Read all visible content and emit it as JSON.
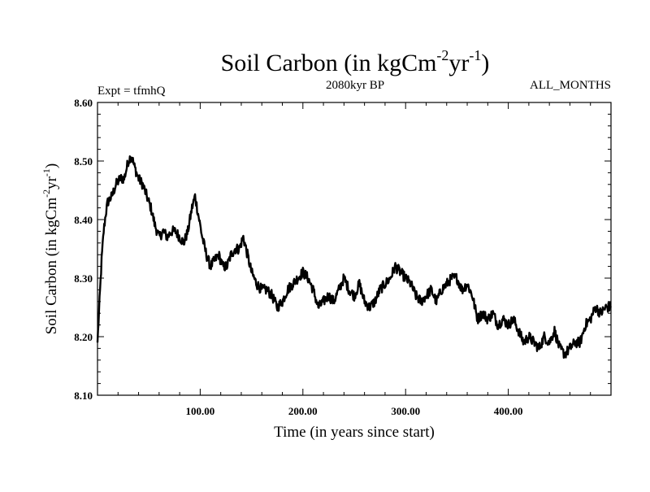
{
  "chart_data": {
    "type": "line",
    "title": {
      "main": "Soil Carbon (in kgCm",
      "sup1": "-2",
      "mid": "yr",
      "sup2": "-1",
      "end": ")"
    },
    "subtitle_left": "Expt = tfmhQ",
    "subtitle_center": "2080kyr BP",
    "subtitle_right": "ALL_MONTHS",
    "xlabel": "Time (in years since start)",
    "ylabel": {
      "main": "Soil Carbon (in kgCm",
      "sup1": "-2",
      "mid": "yr",
      "sup2": "-1",
      "end": ")"
    },
    "xlim": [
      0,
      500
    ],
    "ylim": [
      8.1,
      8.6
    ],
    "xticks": [
      100,
      200,
      300,
      400
    ],
    "xtick_labels": [
      "100.00",
      "200.00",
      "300.00",
      "400.00"
    ],
    "yticks": [
      8.1,
      8.2,
      8.3,
      8.4,
      8.5,
      8.6
    ],
    "ytick_labels": [
      "8.10",
      "8.20",
      "8.30",
      "8.40",
      "8.50",
      "8.60"
    ],
    "series": [
      {
        "name": "Soil Carbon",
        "color": "#000000",
        "x": [
          0,
          2,
          4,
          6,
          8,
          10,
          14,
          18,
          22,
          26,
          30,
          33,
          36,
          40,
          44,
          48,
          52,
          56,
          60,
          64,
          68,
          72,
          76,
          80,
          84,
          88,
          92,
          95,
          98,
          102,
          106,
          110,
          114,
          118,
          122,
          126,
          130,
          134,
          138,
          142,
          146,
          150,
          155,
          160,
          165,
          170,
          175,
          180,
          185,
          190,
          195,
          200,
          205,
          210,
          215,
          220,
          225,
          230,
          235,
          240,
          245,
          250,
          255,
          260,
          265,
          270,
          275,
          280,
          285,
          290,
          295,
          300,
          305,
          310,
          315,
          320,
          325,
          330,
          335,
          340,
          345,
          350,
          355,
          360,
          365,
          370,
          375,
          380,
          385,
          390,
          395,
          400,
          405,
          410,
          415,
          420,
          425,
          430,
          435,
          440,
          445,
          450,
          455,
          460,
          465,
          470,
          475,
          480,
          485,
          490,
          495,
          500
        ],
        "values": [
          8.19,
          8.26,
          8.33,
          8.38,
          8.41,
          8.43,
          8.44,
          8.46,
          8.47,
          8.47,
          8.5,
          8.51,
          8.49,
          8.47,
          8.46,
          8.44,
          8.42,
          8.39,
          8.37,
          8.38,
          8.37,
          8.38,
          8.38,
          8.37,
          8.36,
          8.38,
          8.42,
          8.44,
          8.41,
          8.37,
          8.34,
          8.32,
          8.33,
          8.34,
          8.32,
          8.32,
          8.34,
          8.35,
          8.35,
          8.37,
          8.34,
          8.31,
          8.29,
          8.28,
          8.28,
          8.27,
          8.25,
          8.26,
          8.28,
          8.29,
          8.3,
          8.31,
          8.3,
          8.28,
          8.25,
          8.26,
          8.27,
          8.26,
          8.28,
          8.3,
          8.28,
          8.27,
          8.29,
          8.26,
          8.25,
          8.26,
          8.28,
          8.29,
          8.3,
          8.32,
          8.31,
          8.3,
          8.29,
          8.27,
          8.26,
          8.27,
          8.28,
          8.26,
          8.28,
          8.29,
          8.3,
          8.3,
          8.28,
          8.29,
          8.27,
          8.23,
          8.24,
          8.23,
          8.24,
          8.22,
          8.23,
          8.22,
          8.23,
          8.21,
          8.19,
          8.2,
          8.19,
          8.18,
          8.2,
          8.19,
          8.21,
          8.18,
          8.17,
          8.18,
          8.19,
          8.19,
          8.22,
          8.23,
          8.25,
          8.24,
          8.25,
          8.25
        ]
      }
    ]
  }
}
